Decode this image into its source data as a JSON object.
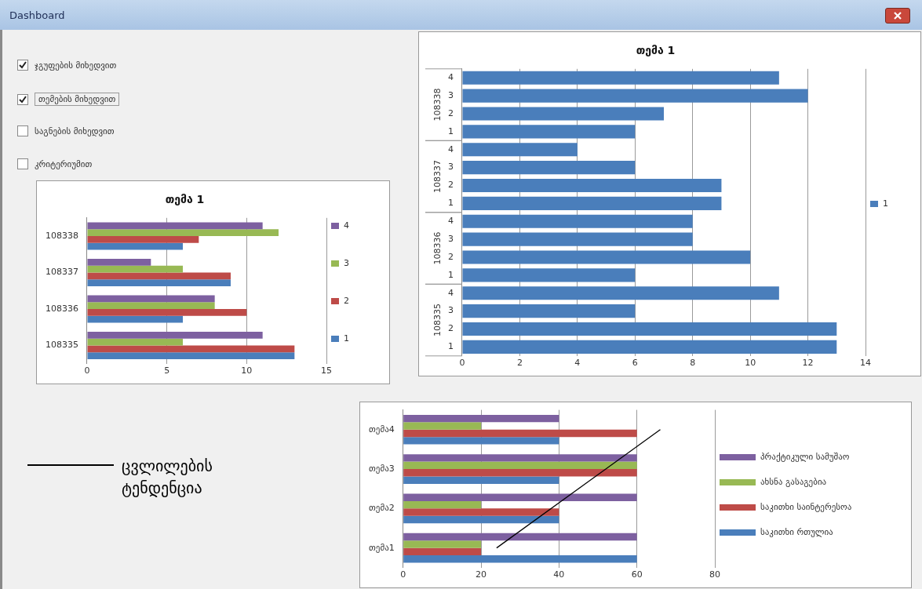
{
  "chart_data": [
    {
      "type": "other",
      "title": "Dashboard",
      "annotations": [
        "ჯგუფების მიხედვით",
        "თემების მიხედვით",
        "საგნების მიხედვით",
        "კრიტერიუმით"
      ]
    },
    {
      "type": "bar",
      "title": "თემა 1",
      "orientation": "horizontal",
      "categories": [
        "108338",
        "108337",
        "108336",
        "108335"
      ],
      "series": [
        {
          "name": "1",
          "color": "#4a7ebb",
          "values": [
            6,
            9,
            6,
            13
          ]
        },
        {
          "name": "2",
          "color": "#be4b48",
          "values": [
            7,
            9,
            10,
            13
          ]
        },
        {
          "name": "3",
          "color": "#98b954",
          "values": [
            12,
            6,
            8,
            6
          ]
        },
        {
          "name": "4",
          "color": "#7d60a0",
          "values": [
            11,
            4,
            8,
            11
          ]
        }
      ],
      "xlim": [
        0,
        15
      ],
      "xticks": [
        0,
        5,
        10,
        15
      ],
      "grid": "x",
      "legend": "right"
    },
    {
      "type": "bar",
      "title": "თემა 1",
      "orientation": "horizontal",
      "categories": [
        "4",
        "3",
        "2",
        "1",
        "4",
        "3",
        "2",
        "1",
        "4",
        "3",
        "2",
        "1",
        "4",
        "3",
        "2",
        "1"
      ],
      "annotations": [
        "108338",
        "108337",
        "108336",
        "108335"
      ],
      "series": [
        {
          "name": "1",
          "color": "#4a7ebb",
          "values": [
            11,
            12,
            7,
            6,
            4,
            6,
            9,
            9,
            8,
            8,
            10,
            6,
            11,
            6,
            13,
            13
          ]
        }
      ],
      "xlim": [
        0,
        14
      ],
      "xticks": [
        0,
        2,
        4,
        6,
        8,
        10,
        12,
        14
      ],
      "grid": "x",
      "legend": "right"
    },
    {
      "type": "bar",
      "orientation": "horizontal",
      "categories": [
        "თემა4",
        "თემა3",
        "თემა2",
        "თემა1"
      ],
      "series": [
        {
          "name": "საკითხი რთულია",
          "color": "#4a7ebb",
          "values": [
            40,
            40,
            40,
            60
          ]
        },
        {
          "name": "საკითხი საინტერესოა",
          "color": "#be4b48",
          "values": [
            60,
            60,
            40,
            20
          ]
        },
        {
          "name": "ახსნა გასაგებია",
          "color": "#98b954",
          "values": [
            20,
            60,
            20,
            20
          ]
        },
        {
          "name": "პრაქტიკული სამუშაო",
          "color": "#7d60a0",
          "values": [
            40,
            60,
            60,
            60
          ]
        },
        {
          "type": "line",
          "name": "ცვლილების ტენდენცია",
          "color": "#000000",
          "x": [
            "თემა1",
            "თემა4"
          ],
          "values": [
            24,
            66
          ],
          "marker": "none",
          "line_style": "solid"
        }
      ],
      "xlim": [
        0,
        80
      ],
      "xticks": [
        0,
        20,
        40,
        60,
        80
      ],
      "grid": "x",
      "legend": "right"
    }
  ]
}
